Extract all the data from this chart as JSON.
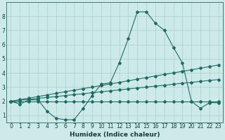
{
  "xlabel": "Humidex (Indice chaleur)",
  "background_color": "#ceeae8",
  "grid_color": "#aacfcf",
  "line_color": "#1e6b65",
  "xlim": [
    -0.5,
    23.5
  ],
  "ylim": [
    0.5,
    9.0
  ],
  "xticks": [
    0,
    1,
    2,
    3,
    4,
    5,
    6,
    7,
    8,
    9,
    10,
    11,
    12,
    13,
    14,
    15,
    16,
    17,
    18,
    19,
    20,
    21,
    22,
    23
  ],
  "yticks": [
    1,
    2,
    3,
    4,
    5,
    6,
    7,
    8
  ],
  "line1_x": [
    0,
    1,
    2,
    3,
    4,
    5,
    6,
    7,
    8,
    9,
    10,
    11,
    12,
    13,
    14,
    15,
    16,
    17,
    18,
    19,
    20,
    21,
    22,
    23
  ],
  "line1_y": [
    2.0,
    1.8,
    2.1,
    2.1,
    1.3,
    0.8,
    0.7,
    0.7,
    1.5,
    2.4,
    3.2,
    3.3,
    4.7,
    6.4,
    8.3,
    8.3,
    7.5,
    7.0,
    5.8,
    4.7,
    2.0,
    1.5,
    1.9,
    1.9
  ],
  "line2_x": [
    0,
    1,
    2,
    3,
    4,
    5,
    6,
    7,
    8,
    9,
    10,
    11,
    12,
    13,
    14,
    15,
    16,
    17,
    18,
    19,
    20,
    21,
    22,
    23
  ],
  "line2_y": [
    2.0,
    2.07,
    2.13,
    2.2,
    2.27,
    2.33,
    2.4,
    2.47,
    2.53,
    2.6,
    2.67,
    2.73,
    2.8,
    2.87,
    2.93,
    3.0,
    3.07,
    3.13,
    3.2,
    3.27,
    3.33,
    3.4,
    3.47,
    3.53
  ],
  "line3_x": [
    0,
    1,
    2,
    3,
    4,
    5,
    6,
    7,
    8,
    9,
    10,
    11,
    12,
    13,
    14,
    15,
    16,
    17,
    18,
    19,
    20,
    21,
    22,
    23
  ],
  "line3_y": [
    2.0,
    2.11,
    2.22,
    2.33,
    2.44,
    2.56,
    2.67,
    2.78,
    2.89,
    3.0,
    3.11,
    3.22,
    3.33,
    3.44,
    3.56,
    3.67,
    3.78,
    3.89,
    4.0,
    4.11,
    4.22,
    4.33,
    4.44,
    4.56
  ],
  "line4_x": [
    0,
    1,
    2,
    3,
    4,
    5,
    6,
    7,
    8,
    9,
    10,
    11,
    12,
    13,
    14,
    15,
    16,
    17,
    18,
    19,
    20,
    21,
    22,
    23
  ],
  "line4_y": [
    2.0,
    2.0,
    2.0,
    2.0,
    2.0,
    2.0,
    2.0,
    2.0,
    2.0,
    2.0,
    2.0,
    2.0,
    2.0,
    2.0,
    2.0,
    2.0,
    2.0,
    2.0,
    2.0,
    2.0,
    2.0,
    2.0,
    2.0,
    2.0
  ]
}
